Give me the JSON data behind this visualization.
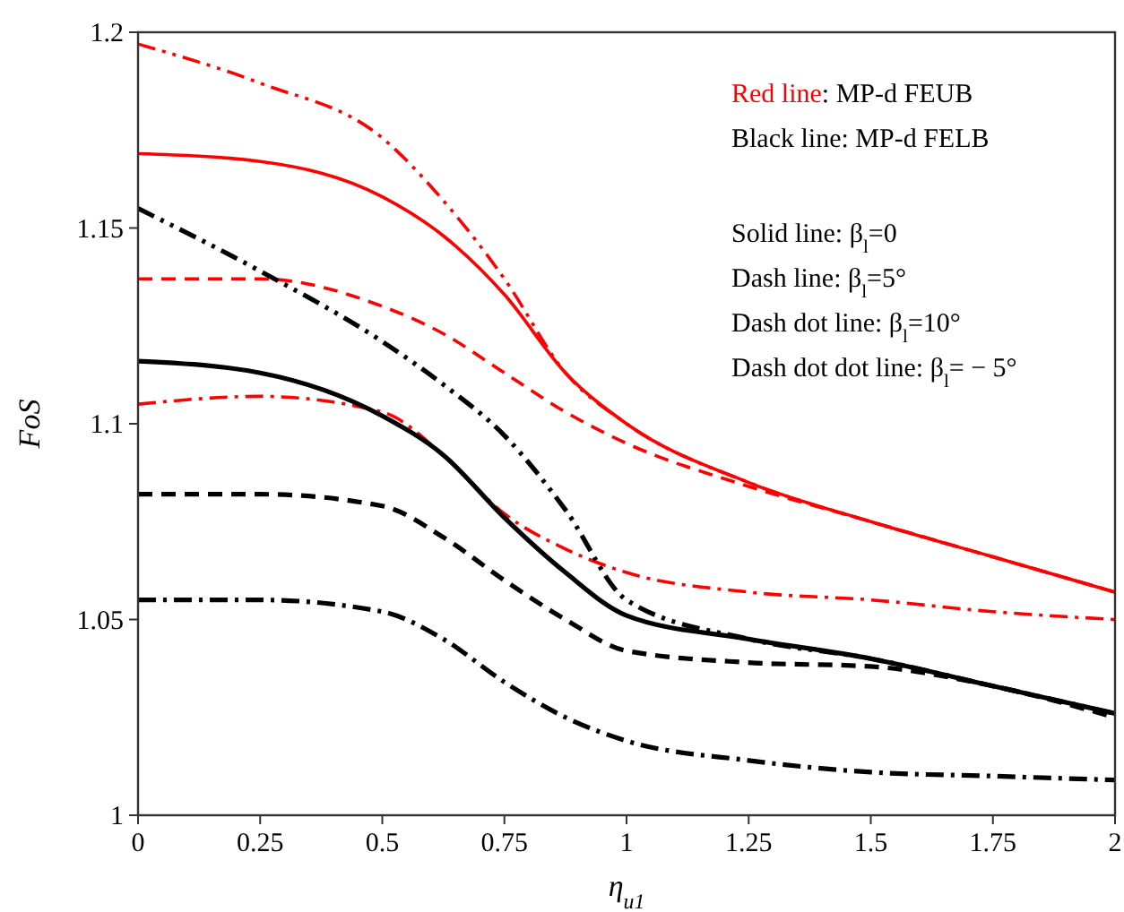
{
  "chart_data": {
    "type": "line",
    "xlabel": "η$_{u1}$",
    "ylabel": "FoS",
    "xlim": [
      0,
      2
    ],
    "ylim": [
      1,
      1.2
    ],
    "xticks": [
      0,
      0.25,
      0.5,
      0.75,
      1,
      1.25,
      1.5,
      1.75,
      2
    ],
    "yticks": [
      1,
      1.05,
      1.1,
      1.15,
      1.2
    ],
    "grid": false,
    "annotations": [
      "Red line: MP-d FEUB",
      "Black line: MP-d FELB",
      "Solid line:  β$_{l}$=0",
      "Dash line: β$_{l}$=5°",
      "Dash dot line:  β$_{l}$=10°",
      "Dash dot dot line: β$_{l}$= − 5°"
    ],
    "x": [
      0,
      0.25,
      0.5,
      0.625,
      0.75,
      0.875,
      1,
      1.25,
      1.5,
      1.75,
      2
    ],
    "series": [
      {
        "color": "#ff0000",
        "line_style": "solid",
        "values": [
          1.169,
          1.167,
          1.158,
          1.148,
          1.133,
          1.113,
          1.1,
          1.085,
          1.075,
          1.066,
          1.057
        ]
      },
      {
        "color": "#ff0000",
        "line_style": "dashed",
        "values": [
          1.137,
          1.137,
          1.13,
          1.123,
          1.113,
          1.103,
          1.095,
          1.084,
          1.075,
          1.066,
          1.057
        ]
      },
      {
        "color": "#ff0000",
        "line_style": "dashdot",
        "values": [
          1.105,
          1.107,
          1.103,
          1.092,
          1.077,
          1.068,
          1.062,
          1.057,
          1.055,
          1.052,
          1.05
        ]
      },
      {
        "color": "#ff0000",
        "line_style": "dashdotdot",
        "values": [
          1.197,
          1.187,
          1.173,
          1.157,
          1.137,
          1.113,
          1.1,
          1.085,
          1.075,
          1.066,
          1.057
        ]
      },
      {
        "color": "#000000",
        "line_style": "solid",
        "values": [
          1.116,
          1.113,
          1.102,
          1.092,
          1.076,
          1.062,
          1.051,
          1.045,
          1.04,
          1.033,
          1.026
        ]
      },
      {
        "color": "#000000",
        "line_style": "dashed",
        "values": [
          1.082,
          1.082,
          1.079,
          1.071,
          1.06,
          1.05,
          1.042,
          1.039,
          1.038,
          1.033,
          1.025
        ]
      },
      {
        "color": "#000000",
        "line_style": "dashdot",
        "values": [
          1.055,
          1.055,
          1.052,
          1.045,
          1.034,
          1.025,
          1.019,
          1.014,
          1.011,
          1.01,
          1.009
        ]
      },
      {
        "color": "#000000",
        "line_style": "dashdotdot",
        "values": [
          1.155,
          1.139,
          1.121,
          1.11,
          1.097,
          1.078,
          1.055,
          1.045,
          1.04,
          1.033,
          1.026
        ]
      }
    ]
  }
}
